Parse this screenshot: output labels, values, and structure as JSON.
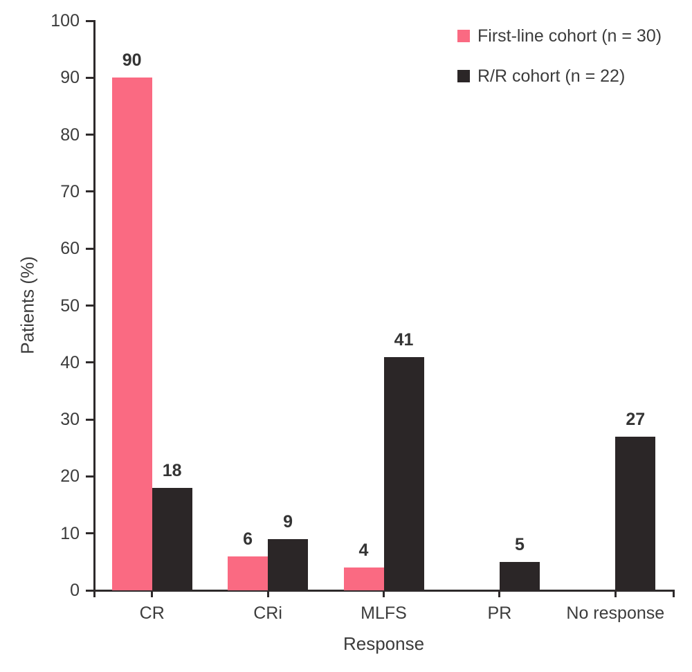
{
  "chart_data": {
    "type": "bar",
    "title": "",
    "xlabel": "Response",
    "ylabel": "Patients (%)",
    "categories": [
      "CR",
      "CRi",
      "MLFS",
      "PR",
      "No response"
    ],
    "series": [
      {
        "name": "First-line cohort (n = 30)",
        "color": "#fa6a82",
        "values": [
          90,
          6,
          4,
          null,
          null
        ]
      },
      {
        "name": "R/R cohort (n = 22)",
        "color": "#2b2627",
        "values": [
          18,
          9,
          41,
          5,
          27
        ]
      }
    ],
    "ylim": [
      0,
      100
    ],
    "ytick_step": 10,
    "grid": false,
    "legend_position": "top-right",
    "value_labels": true
  },
  "colors": {
    "axis": "#2e2a2b",
    "text": "#3c3c3c",
    "background": "#ffffff"
  }
}
